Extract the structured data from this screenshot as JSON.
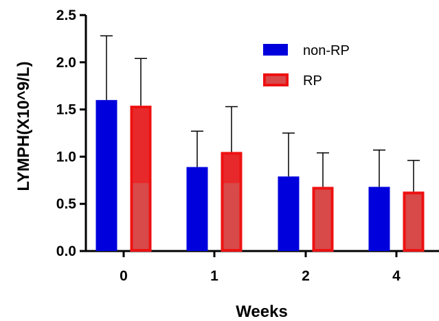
{
  "chart_data": {
    "type": "bar",
    "title": "",
    "xlabel": "Weeks",
    "ylabel": "LYMPH(X10^9/L)",
    "categories": [
      "0",
      "1",
      "2",
      "4"
    ],
    "ylim": [
      0,
      2.5
    ],
    "yticks": [
      "0.0",
      "0.5",
      "1.0",
      "1.5",
      "2.0",
      "2.5"
    ],
    "legend_position": "top-right",
    "grid": false,
    "series": [
      {
        "name": "non-RP",
        "color": "#0000dd",
        "values": [
          1.6,
          0.89,
          0.79,
          0.68
        ],
        "error": [
          0.68,
          0.38,
          0.46,
          0.39
        ]
      },
      {
        "name": "RP",
        "color": "#ee1111",
        "values": [
          1.54,
          1.05,
          0.68,
          0.63
        ],
        "error": [
          0.5,
          0.48,
          0.36,
          0.33
        ]
      }
    ]
  }
}
